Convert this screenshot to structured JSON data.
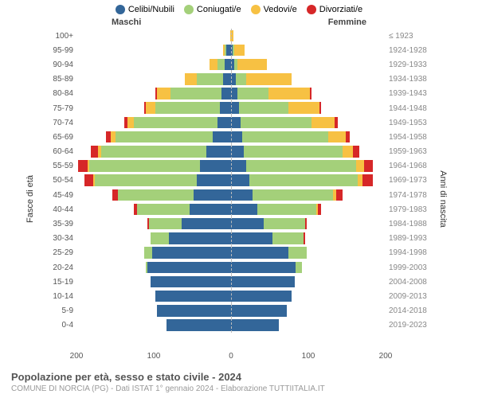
{
  "legend": [
    {
      "label": "Celibi/Nubili",
      "color": "#336699"
    },
    {
      "label": "Coniugati/e",
      "color": "#a4d07a"
    },
    {
      "label": "Vedovi/e",
      "color": "#f7c143"
    },
    {
      "label": "Divorziati/e",
      "color": "#d62728"
    }
  ],
  "col_headers": {
    "left": "Maschi",
    "right": "Femmine"
  },
  "y_label_left": "Fasce di età",
  "y_label_right": "Anni di nascita",
  "footer_title": "Popolazione per età, sesso e stato civile - 2024",
  "footer_sub": "COMUNE DI NORCIA (PG) - Dati ISTAT 1° gennaio 2024 - Elaborazione TUTTIITALIA.IT",
  "x_ticks": [
    -200,
    -100,
    0,
    100,
    200
  ],
  "x_max": 200,
  "colors": {
    "celibi": "#336699",
    "coniugati": "#a4d07a",
    "vedovi": "#f7c143",
    "divorziati": "#d62728",
    "bg": "#ffffff",
    "grid": "#ffffff",
    "center_line": "#bbbbbb"
  },
  "rows": [
    {
      "age": "100+",
      "year": "≤ 1923",
      "m": {
        "c": 0,
        "co": 0,
        "v": 1,
        "d": 0
      },
      "f": {
        "c": 0,
        "co": 0,
        "v": 3,
        "d": 0
      }
    },
    {
      "age": "95-99",
      "year": "1924-1928",
      "m": {
        "c": 6,
        "co": 2,
        "v": 2,
        "d": 0
      },
      "f": {
        "c": 2,
        "co": 2,
        "v": 14,
        "d": 0
      }
    },
    {
      "age": "90-94",
      "year": "1929-1933",
      "m": {
        "c": 8,
        "co": 10,
        "v": 10,
        "d": 0
      },
      "f": {
        "c": 4,
        "co": 4,
        "v": 38,
        "d": 0
      }
    },
    {
      "age": "85-89",
      "year": "1934-1938",
      "m": {
        "c": 10,
        "co": 34,
        "v": 16,
        "d": 0
      },
      "f": {
        "c": 6,
        "co": 14,
        "v": 58,
        "d": 0
      }
    },
    {
      "age": "80-84",
      "year": "1939-1943",
      "m": {
        "c": 12,
        "co": 66,
        "v": 18,
        "d": 2
      },
      "f": {
        "c": 8,
        "co": 40,
        "v": 54,
        "d": 2
      }
    },
    {
      "age": "75-79",
      "year": "1944-1948",
      "m": {
        "c": 14,
        "co": 84,
        "v": 12,
        "d": 2
      },
      "f": {
        "c": 10,
        "co": 64,
        "v": 40,
        "d": 2
      }
    },
    {
      "age": "70-74",
      "year": "1949-1953",
      "m": {
        "c": 18,
        "co": 108,
        "v": 8,
        "d": 4
      },
      "f": {
        "c": 12,
        "co": 92,
        "v": 30,
        "d": 4
      }
    },
    {
      "age": "65-69",
      "year": "1954-1958",
      "m": {
        "c": 24,
        "co": 126,
        "v": 6,
        "d": 6
      },
      "f": {
        "c": 14,
        "co": 112,
        "v": 22,
        "d": 6
      }
    },
    {
      "age": "60-64",
      "year": "1959-1963",
      "m": {
        "c": 32,
        "co": 136,
        "v": 4,
        "d": 10
      },
      "f": {
        "c": 16,
        "co": 128,
        "v": 14,
        "d": 8
      }
    },
    {
      "age": "55-59",
      "year": "1964-1968",
      "m": {
        "c": 40,
        "co": 144,
        "v": 2,
        "d": 12
      },
      "f": {
        "c": 20,
        "co": 142,
        "v": 10,
        "d": 12
      }
    },
    {
      "age": "50-54",
      "year": "1969-1973",
      "m": {
        "c": 44,
        "co": 132,
        "v": 2,
        "d": 12
      },
      "f": {
        "c": 24,
        "co": 140,
        "v": 6,
        "d": 14
      }
    },
    {
      "age": "45-49",
      "year": "1974-1978",
      "m": {
        "c": 48,
        "co": 98,
        "v": 0,
        "d": 8
      },
      "f": {
        "c": 28,
        "co": 104,
        "v": 4,
        "d": 8
      }
    },
    {
      "age": "40-44",
      "year": "1979-1983",
      "m": {
        "c": 54,
        "co": 68,
        "v": 0,
        "d": 4
      },
      "f": {
        "c": 34,
        "co": 76,
        "v": 2,
        "d": 4
      }
    },
    {
      "age": "35-39",
      "year": "1984-1988",
      "m": {
        "c": 64,
        "co": 42,
        "v": 0,
        "d": 2
      },
      "f": {
        "c": 42,
        "co": 54,
        "v": 0,
        "d": 2
      }
    },
    {
      "age": "30-34",
      "year": "1989-1993",
      "m": {
        "c": 80,
        "co": 24,
        "v": 0,
        "d": 0
      },
      "f": {
        "c": 54,
        "co": 40,
        "v": 0,
        "d": 2
      }
    },
    {
      "age": "25-29",
      "year": "1994-1998",
      "m": {
        "c": 102,
        "co": 10,
        "v": 0,
        "d": 0
      },
      "f": {
        "c": 74,
        "co": 24,
        "v": 0,
        "d": 0
      }
    },
    {
      "age": "20-24",
      "year": "1999-2003",
      "m": {
        "c": 108,
        "co": 2,
        "v": 0,
        "d": 0
      },
      "f": {
        "c": 84,
        "co": 8,
        "v": 0,
        "d": 0
      }
    },
    {
      "age": "15-19",
      "year": "2004-2008",
      "m": {
        "c": 104,
        "co": 0,
        "v": 0,
        "d": 0
      },
      "f": {
        "c": 82,
        "co": 0,
        "v": 0,
        "d": 0
      }
    },
    {
      "age": "10-14",
      "year": "2009-2013",
      "m": {
        "c": 98,
        "co": 0,
        "v": 0,
        "d": 0
      },
      "f": {
        "c": 78,
        "co": 0,
        "v": 0,
        "d": 0
      }
    },
    {
      "age": "5-9",
      "year": "2014-2018",
      "m": {
        "c": 96,
        "co": 0,
        "v": 0,
        "d": 0
      },
      "f": {
        "c": 72,
        "co": 0,
        "v": 0,
        "d": 0
      }
    },
    {
      "age": "0-4",
      "year": "2019-2023",
      "m": {
        "c": 84,
        "co": 0,
        "v": 0,
        "d": 0
      },
      "f": {
        "c": 62,
        "co": 0,
        "v": 0,
        "d": 0
      }
    }
  ]
}
